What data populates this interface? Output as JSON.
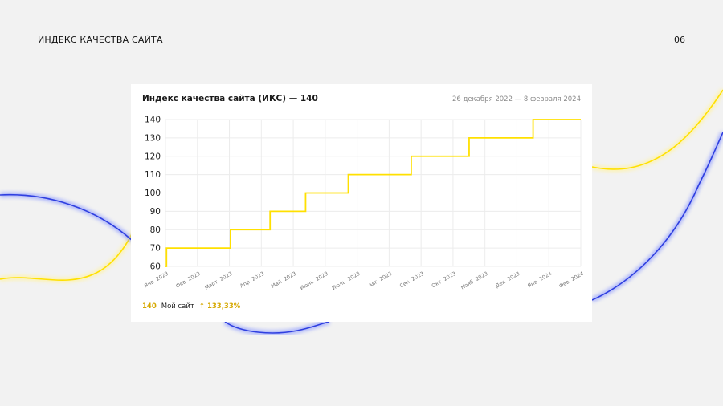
{
  "slide": {
    "title": "ИНДЕКС КАЧЕСТВА САЙТА",
    "page_number": "06"
  },
  "card": {
    "title": "Индекс качества сайта (ИКС) — 140",
    "date_range": "26 декабря 2022 — 8 февраля 2024"
  },
  "legend": {
    "value": "140",
    "name": "Мой сайт",
    "change": "↑ 133,33%"
  },
  "colors": {
    "line": "#ffe000",
    "grid": "#ececec",
    "accent_text": "#d6a800",
    "decor_yellow": "#ffe84d",
    "decor_blue": "#2f3fe0"
  },
  "chart_data": {
    "type": "line",
    "step": true,
    "x_tick_labels": [
      "Янв. 2023",
      "Фев. 2023",
      "Март. 2023",
      "Апр. 2023",
      "Май. 2023",
      "Июнь. 2023",
      "Июль. 2023",
      "Авг. 2023",
      "Сен. 2023",
      "Окт. 2023",
      "Нояб. 2023",
      "Дек. 2023",
      "Янв. 2024",
      "Фев. 2024"
    ],
    "y_ticks": [
      60,
      70,
      80,
      90,
      100,
      110,
      120,
      130,
      140
    ],
    "ylim": [
      60,
      140
    ],
    "xlim": [
      "2022-12-26",
      "2024-02-08"
    ],
    "series": [
      {
        "name": "Мой сайт",
        "points": [
          {
            "x": "2022-12-26",
            "y": 60
          },
          {
            "x": "2022-12-27",
            "y": 70
          },
          {
            "x": "2023-02-28",
            "y": 80
          },
          {
            "x": "2023-04-08",
            "y": 90
          },
          {
            "x": "2023-05-13",
            "y": 100
          },
          {
            "x": "2023-06-24",
            "y": 110
          },
          {
            "x": "2023-08-25",
            "y": 120
          },
          {
            "x": "2023-10-21",
            "y": 130
          },
          {
            "x": "2023-12-23",
            "y": 140
          },
          {
            "x": "2024-02-08",
            "y": 140
          }
        ]
      }
    ]
  }
}
